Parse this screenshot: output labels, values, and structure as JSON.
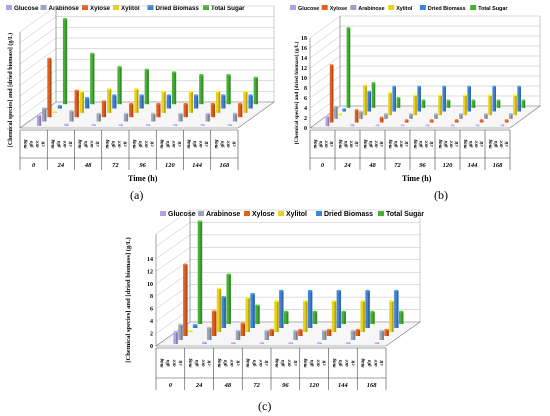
{
  "legend": {
    "items": [
      {
        "name": "Glucose",
        "color": "#b59ee8"
      },
      {
        "name": "Arabinose",
        "color": "#9aa6b8"
      },
      {
        "name": "Xylose",
        "color": "#e2601f"
      },
      {
        "name": "Xylitol",
        "color": "#e8d21c"
      },
      {
        "name": "Dried Biomass",
        "color": "#3f83d6"
      },
      {
        "name": "Total Sugar",
        "color": "#46b035"
      }
    ]
  },
  "panels": [
    {
      "letter": "(a)",
      "xtitle": "Time (h)",
      "ylabel": "[Chemical species] and [dried biomass] (g/L)"
    },
    {
      "letter": "(b)",
      "xtitle": "Time (h)",
      "ylabel": "[Chemical species] and [dried biomass] (g/L)"
    },
    {
      "letter": "(c)",
      "xtitle": "",
      "ylabel": "[Chemical species] and [dried biomass] (g/L)"
    }
  ],
  "chart_data": [
    {
      "type": "bar",
      "title": "",
      "xlabel": "Time (h)",
      "ylabel": "[Chemical species] and [dried biomass] (g/L)",
      "categories": [
        "0",
        "24",
        "48",
        "72",
        "96",
        "120",
        "144",
        "168"
      ],
      "sublabels": [
        "mag",
        "glu",
        "ace",
        "cit"
      ],
      "legend_order": [
        "Glucose",
        "Arabinose",
        "Xylose",
        "Xylitol",
        "Dried Biomass",
        "Total Sugar"
      ],
      "ylim": [
        0,
        18
      ],
      "series": [
        {
          "name": "Glucose",
          "values": [
            2.0,
            0.3,
            0.2,
            0.2,
            0.2,
            0.2,
            0.2,
            0.2
          ]
        },
        {
          "name": "Arabinose",
          "values": [
            2.5,
            2.0,
            1.5,
            1.5,
            1.5,
            1.5,
            1.5,
            1.5
          ]
        },
        {
          "name": "Xylose",
          "values": [
            11.0,
            5.0,
            3.0,
            2.5,
            2.5,
            2.5,
            2.5,
            2.5
          ]
        },
        {
          "name": "Xylitol",
          "values": [
            0.0,
            4.0,
            4.5,
            4.5,
            4.0,
            4.0,
            4.0,
            4.0
          ]
        },
        {
          "name": "Dried Biomass",
          "values": [
            0.5,
            2.0,
            2.5,
            2.5,
            2.5,
            2.5,
            2.5,
            2.5
          ]
        },
        {
          "name": "Total Sugar",
          "values": [
            16.0,
            9.5,
            7.0,
            6.5,
            6.0,
            5.5,
            5.5,
            5.0
          ]
        }
      ]
    },
    {
      "type": "bar",
      "title": "",
      "xlabel": "Time (h)",
      "ylabel": "[Chemical species] and [dried biomass] (g/L)",
      "categories": [
        "0",
        "24",
        "48",
        "72",
        "96",
        "120",
        "144",
        "168"
      ],
      "sublabels": [
        "mag",
        "glu",
        "ace",
        "cit"
      ],
      "legend_order": [
        "Glucose",
        "Xylose",
        "Arabinose",
        "Xylitol",
        "Dried Biomass",
        "Total Sugar"
      ],
      "ylim": [
        0,
        18
      ],
      "yticks": [
        0,
        2,
        4,
        6,
        8,
        10,
        12,
        14,
        16,
        18
      ],
      "series": [
        {
          "name": "Glucose",
          "values": [
            2.0,
            0.3,
            0.2,
            0.2,
            0.2,
            0.2,
            0.2,
            0.2
          ]
        },
        {
          "name": "Xylose",
          "values": [
            11.5,
            2.5,
            1.0,
            0.5,
            0.5,
            0.5,
            0.5,
            0.5
          ]
        },
        {
          "name": "Arabinose",
          "values": [
            2.5,
            1.5,
            1.0,
            1.0,
            1.0,
            1.0,
            1.0,
            1.0
          ]
        },
        {
          "name": "Xylitol",
          "values": [
            0.0,
            6.0,
            4.5,
            4.0,
            4.0,
            4.0,
            4.0,
            4.0
          ]
        },
        {
          "name": "Dried Biomass",
          "values": [
            0.5,
            4.0,
            5.0,
            5.0,
            5.0,
            5.0,
            5.0,
            5.0
          ]
        },
        {
          "name": "Total Sugar",
          "values": [
            16.0,
            5.0,
            2.0,
            1.5,
            1.5,
            1.5,
            1.5,
            1.5
          ]
        }
      ]
    },
    {
      "type": "bar",
      "title": "",
      "xlabel": "",
      "ylabel": "[Chemical species] and [dried biomass] (g/L)",
      "categories": [
        "0",
        "24",
        "48",
        "72",
        "96",
        "120",
        "144",
        "168"
      ],
      "sublabels": [
        "mag",
        "glu",
        "ace",
        "cit"
      ],
      "legend_order": [
        "Glucose",
        "Arabinose",
        "Xylose",
        "Xylitol",
        "Dried Biomass",
        "Total Sugar"
      ],
      "ylim": [
        0,
        18
      ],
      "yticks": [
        0,
        2,
        4,
        6,
        8,
        10,
        12,
        14
      ],
      "series": [
        {
          "name": "Glucose",
          "values": [
            2.0,
            0.3,
            0.2,
            0.2,
            0.2,
            0.2,
            0.2,
            0.2
          ]
        },
        {
          "name": "Arabinose",
          "values": [
            2.5,
            2.0,
            1.5,
            1.5,
            1.5,
            1.5,
            1.5,
            1.5
          ]
        },
        {
          "name": "Xylose",
          "values": [
            11.5,
            4.0,
            2.0,
            1.0,
            1.0,
            1.0,
            1.0,
            1.0
          ]
        },
        {
          "name": "Xylitol",
          "values": [
            0.0,
            7.0,
            5.5,
            5.0,
            5.0,
            5.0,
            5.0,
            5.0
          ]
        },
        {
          "name": "Dried Biomass",
          "values": [
            0.5,
            5.0,
            5.5,
            6.0,
            6.0,
            6.0,
            6.0,
            6.0
          ]
        },
        {
          "name": "Total Sugar",
          "values": [
            16.5,
            8.0,
            3.0,
            2.0,
            2.0,
            2.0,
            2.0,
            2.0
          ]
        }
      ]
    }
  ]
}
